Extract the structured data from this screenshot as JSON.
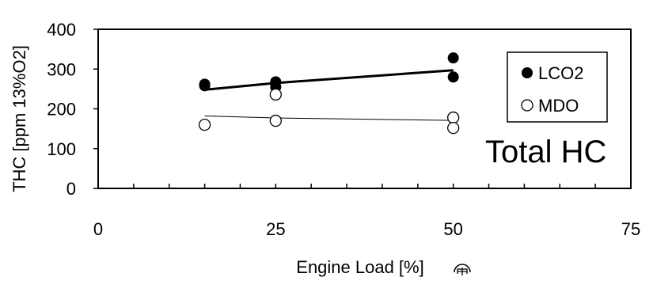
{
  "chart_data": {
    "type": "scatter",
    "xlabel": "Engine Load [%]",
    "ylabel": "THC [ppm 13%O2]",
    "annotation": "Total HC",
    "xlim": [
      0,
      75
    ],
    "ylim": [
      0,
      400
    ],
    "xticks": [
      0,
      25,
      50,
      75
    ],
    "yticks": [
      0,
      100,
      200,
      300,
      400
    ],
    "grid": false,
    "legend_position": "top-right",
    "series": [
      {
        "name": "LCO2",
        "marker": "filled-circle",
        "color": "#000000",
        "points": [
          [
            15,
            262
          ],
          [
            15,
            258
          ],
          [
            25,
            268
          ],
          [
            25,
            255
          ],
          [
            50,
            328
          ],
          [
            50,
            280
          ]
        ],
        "trend": {
          "x": [
            15,
            25,
            50
          ],
          "y": [
            248,
            265,
            297
          ],
          "width": 3
        }
      },
      {
        "name": "MDO",
        "marker": "open-circle",
        "color": "#000000",
        "points": [
          [
            15,
            160
          ],
          [
            25,
            170
          ],
          [
            25,
            236
          ],
          [
            50,
            178
          ],
          [
            50,
            152
          ]
        ],
        "trend": {
          "x": [
            15,
            25,
            50
          ],
          "y": [
            182,
            177,
            171
          ],
          "width": 1
        }
      }
    ]
  }
}
